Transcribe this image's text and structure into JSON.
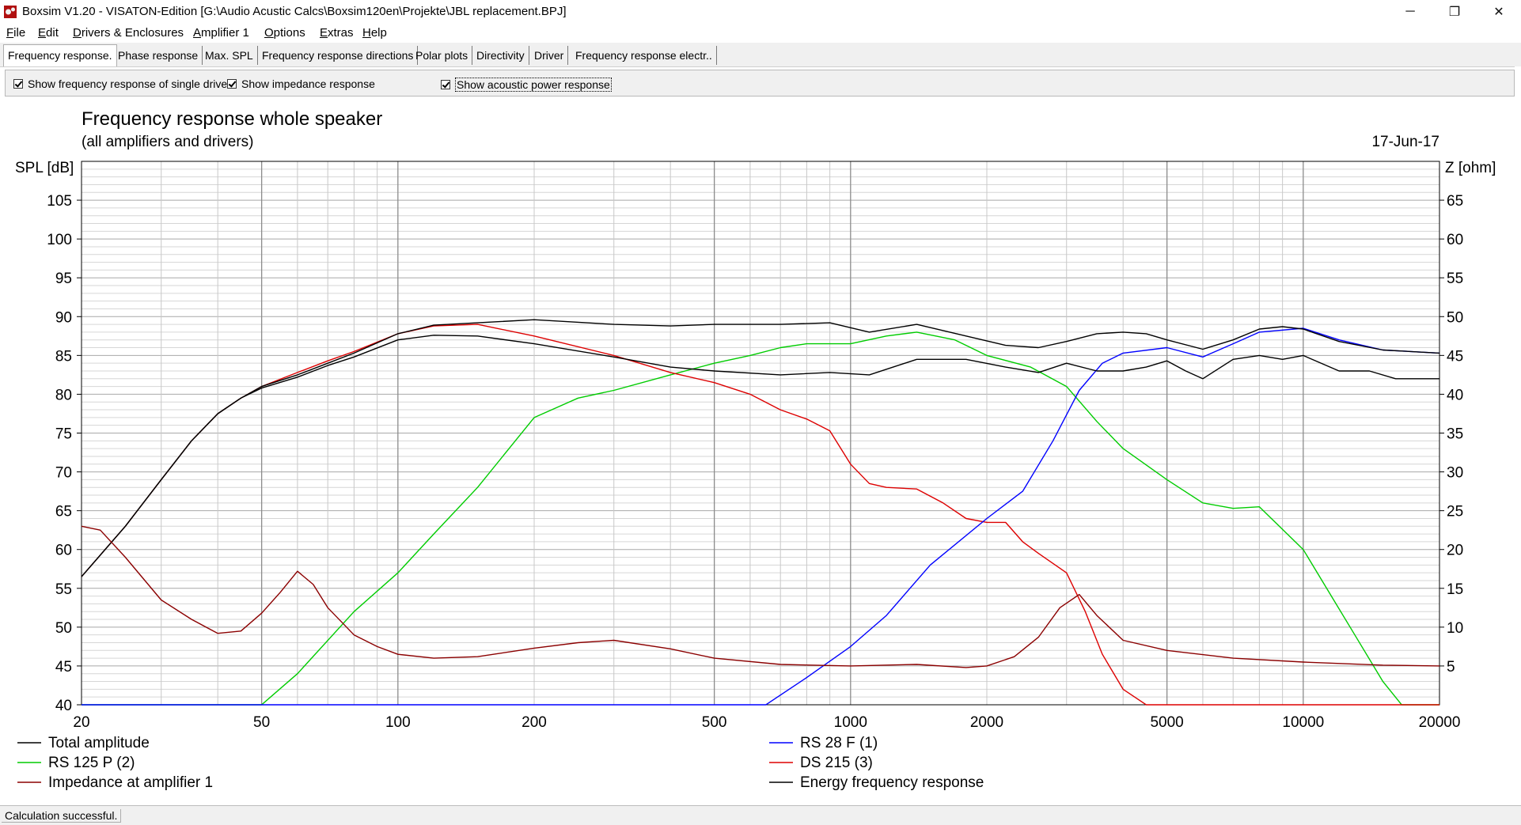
{
  "window": {
    "title": "Boxsim V1.20 - VISATON-Edition [G:\\Audio Acustic Calcs\\Boxsim120en\\Projekte\\JBL replacement.BPJ]",
    "minimize_glyph": "─",
    "maximize_glyph": "❐",
    "close_glyph": "✕"
  },
  "menu": {
    "items": [
      {
        "u": "F",
        "rest": "ile"
      },
      {
        "u": "E",
        "rest": "dit"
      },
      {
        "u": "D",
        "rest": "rivers & Enclosures"
      },
      {
        "u": "A",
        "rest": "mplifier 1"
      },
      {
        "u": "O",
        "rest": "ptions"
      },
      {
        "u": "E",
        "rest": "xtras"
      },
      {
        "u": "H",
        "rest": "elp"
      }
    ]
  },
  "tabs": [
    {
      "label": "Frequency response."
    },
    {
      "label": "Phase response"
    },
    {
      "label": "Max. SPL"
    },
    {
      "label": "Frequency response directions"
    },
    {
      "label": "Polar plots"
    },
    {
      "label": "Directivity"
    },
    {
      "label": "Driver"
    },
    {
      "label": "Frequency response electr.."
    }
  ],
  "options": {
    "single_drive": "Show frequency response of single drive",
    "impedance": "Show impedance response",
    "acoustic_power": "Show acoustic power response"
  },
  "chart_data": {
    "type": "line",
    "title": "Frequency response whole speaker",
    "subtitle": "(all amplifiers and drivers)",
    "date": "17-Jun-17",
    "ylabel": "SPL [dB]",
    "y2label": "Z [ohm]",
    "x_scale": "log",
    "xlim": [
      20,
      20000
    ],
    "ylim": [
      40,
      110
    ],
    "y2lim": [
      0,
      70
    ],
    "x_ticks": [
      20,
      50,
      100,
      200,
      500,
      1000,
      2000,
      5000,
      10000,
      20000
    ],
    "y_ticks": [
      40,
      45,
      50,
      55,
      60,
      65,
      70,
      75,
      80,
      85,
      90,
      95,
      100,
      105
    ],
    "y2_ticks": [
      5,
      10,
      15,
      20,
      25,
      30,
      35,
      40,
      45,
      50,
      55,
      60,
      65
    ],
    "grid": true,
    "legend_position": "bottom",
    "series": [
      {
        "name": "Total amplitude",
        "color": "#000000",
        "x": [
          20,
          25,
          30,
          35,
          40,
          45,
          50,
          60,
          70,
          80,
          100,
          120,
          150,
          200,
          300,
          400,
          500,
          700,
          900,
          1100,
          1400,
          1800,
          2200,
          2600,
          3000,
          3500,
          4000,
          4500,
          5000,
          6000,
          7000,
          8000,
          9000,
          10000,
          12000,
          15000,
          20000
        ],
        "y": [
          56.5,
          63,
          69,
          74,
          77.5,
          79.5,
          81,
          82.5,
          84,
          85.3,
          87.8,
          88.9,
          89.2,
          89.6,
          89,
          88.8,
          89,
          89,
          89.2,
          88,
          89,
          87.5,
          86.3,
          86,
          86.8,
          87.8,
          88,
          87.8,
          87,
          85.8,
          87,
          88.4,
          88.7,
          88.4,
          86.8,
          85.7,
          85.3
        ]
      },
      {
        "name": "RS 28 F (1)",
        "color": "#0000ff",
        "x": [
          20,
          500,
          650,
          800,
          1000,
          1200,
          1500,
          2000,
          2400,
          2800,
          3200,
          3600,
          4000,
          5000,
          6000,
          7000,
          8000,
          10000,
          12000,
          15000,
          20000
        ],
        "y": [
          40,
          40,
          40,
          43.5,
          47.5,
          51.5,
          58,
          64,
          67.5,
          74,
          80.5,
          84,
          85.3,
          86,
          84.8,
          86.5,
          88,
          88.5,
          87,
          85.7,
          85.3
        ]
      },
      {
        "name": "RS 125 P (2)",
        "color": "#00cc00",
        "x": [
          20,
          50,
          60,
          80,
          100,
          120,
          150,
          200,
          250,
          300,
          400,
          500,
          600,
          700,
          800,
          1000,
          1200,
          1400,
          1700,
          2000,
          2500,
          3000,
          3500,
          4000,
          5000,
          6000,
          7000,
          8000,
          10000,
          13000,
          15000,
          16500,
          20000
        ],
        "y": [
          40,
          40,
          44,
          52,
          57,
          62,
          68,
          77,
          79.5,
          80.5,
          82.5,
          84,
          85,
          86,
          86.5,
          86.5,
          87.5,
          88,
          87,
          85,
          83.5,
          81,
          76.5,
          73,
          69,
          66,
          65.3,
          65.5,
          60,
          49,
          43,
          40,
          40
        ]
      },
      {
        "name": "DS 215 (3)",
        "color": "#dd0000",
        "x": [
          20,
          25,
          30,
          35,
          40,
          45,
          50,
          60,
          70,
          80,
          100,
          120,
          150,
          200,
          300,
          400,
          500,
          600,
          700,
          800,
          900,
          1000,
          1100,
          1200,
          1400,
          1600,
          1800,
          2000,
          2200,
          2400,
          2600,
          3000,
          3300,
          3600,
          4000,
          4500,
          5000,
          20000
        ],
        "y": [
          56.5,
          63,
          69,
          74,
          77.5,
          79.5,
          81,
          82.8,
          84.3,
          85.5,
          87.8,
          88.8,
          89,
          87.5,
          85,
          82.8,
          81.5,
          80,
          78,
          76.8,
          75.3,
          71,
          68.5,
          68,
          67.8,
          66,
          64,
          63.5,
          63.5,
          61,
          59.5,
          57,
          52,
          46.5,
          42,
          40,
          40,
          40
        ]
      },
      {
        "name": "Impedance at amplifier 1",
        "color": "#8b0000",
        "x": [
          20,
          22,
          25,
          30,
          35,
          40,
          45,
          50,
          55,
          60,
          65,
          70,
          80,
          90,
          100,
          120,
          150,
          200,
          250,
          300,
          400,
          500,
          700,
          1000,
          1400,
          1800,
          2000,
          2300,
          2600,
          2900,
          3200,
          3500,
          4000,
          5000,
          7000,
          10000,
          15000,
          20000
        ],
        "y": [
          23,
          22.5,
          19,
          13.5,
          11,
          9.2,
          9.5,
          11.8,
          14.5,
          17.2,
          15.5,
          12.5,
          9,
          7.5,
          6.5,
          6,
          6.2,
          7.3,
          8,
          8.3,
          7.2,
          6,
          5.2,
          5,
          5.2,
          4.8,
          5,
          6.2,
          8.7,
          12.5,
          14.2,
          11.5,
          8.3,
          7,
          6,
          5.5,
          5.1,
          5
        ]
      },
      {
        "name": "Energy frequency response",
        "color": "#000000",
        "x": [
          20,
          25,
          30,
          35,
          40,
          45,
          50,
          60,
          70,
          80,
          100,
          120,
          150,
          200,
          300,
          400,
          500,
          700,
          900,
          1100,
          1400,
          1800,
          2200,
          2600,
          3000,
          3500,
          4000,
          4500,
          5000,
          5500,
          6000,
          7000,
          8000,
          9000,
          10000,
          12000,
          14000,
          16000,
          20000
        ],
        "y": [
          56.5,
          63,
          69,
          74,
          77.5,
          79.5,
          80.8,
          82.2,
          83.7,
          84.8,
          87,
          87.6,
          87.5,
          86.5,
          84.8,
          83.5,
          83,
          82.5,
          82.8,
          82.5,
          84.5,
          84.5,
          83.5,
          82.8,
          84,
          83,
          83,
          83.5,
          84.3,
          83,
          82,
          84.5,
          85,
          84.5,
          85,
          83,
          83,
          82,
          82
        ]
      }
    ]
  },
  "status": {
    "text": "Calculation successful."
  }
}
